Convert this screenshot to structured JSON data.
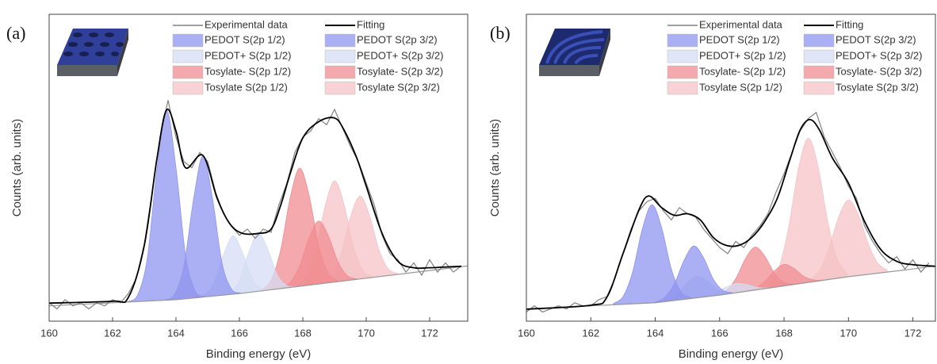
{
  "chart_data": [
    {
      "type": "area",
      "panel_label": "(a)",
      "xlabel": "Binding energy (eV)",
      "ylabel": "Counts (arb. units)",
      "xlim": [
        160,
        173.2
      ],
      "xticks": [
        160,
        162,
        164,
        166,
        168,
        170,
        172
      ],
      "ylim": [
        0,
        100
      ],
      "experimental": {
        "name": "Experimental data",
        "color": "#808080",
        "x": [
          160,
          160.25,
          160.5,
          160.75,
          161,
          161.25,
          161.5,
          161.75,
          162,
          162.25,
          162.5,
          162.75,
          163,
          163.25,
          163.5,
          163.75,
          164,
          164.25,
          164.5,
          164.75,
          165,
          165.25,
          165.5,
          165.75,
          166,
          166.25,
          166.5,
          166.75,
          167,
          167.25,
          167.5,
          167.75,
          168,
          168.25,
          168.5,
          168.75,
          169,
          169.25,
          169.5,
          169.75,
          170,
          170.25,
          170.5,
          170.75,
          171,
          171.25,
          171.5,
          171.75,
          172,
          172.25,
          172.5,
          172.75,
          173
        ],
        "values": [
          6,
          4,
          7,
          5,
          6,
          4,
          6,
          5,
          7,
          6,
          9,
          14,
          25,
          42,
          60,
          72,
          60,
          52,
          50,
          55,
          52,
          42,
          35,
          31,
          28,
          30,
          27,
          30,
          29,
          38,
          45,
          55,
          60,
          62,
          66,
          64,
          69,
          63,
          57,
          52,
          45,
          38,
          28,
          22,
          20,
          16,
          19,
          15,
          20,
          16,
          19,
          16,
          18
        ]
      },
      "fit": {
        "name": "Fitting",
        "color": "#000000",
        "x": [
          160,
          162,
          162.5,
          163,
          163.4,
          163.7,
          164,
          164.3,
          164.85,
          165.3,
          165.7,
          166.1,
          166.6,
          167,
          167.3,
          167.6,
          168,
          168.5,
          169,
          169.3,
          169.7,
          170,
          170.5,
          171,
          171.5,
          172,
          173
        ],
        "values": [
          5.9,
          6.5,
          7.8,
          24.7,
          53,
          68.8,
          62,
          50,
          54,
          40,
          31.7,
          28.6,
          28.6,
          30,
          37.7,
          48,
          59.7,
          65,
          66.2,
          62.3,
          53.2,
          44,
          28.6,
          19.5,
          17.4,
          17.4,
          17.9
        ]
      },
      "baseline": {
        "color": "#9a9a9a",
        "x": [
          160,
          162,
          164,
          166,
          168,
          170,
          172,
          173.2
        ],
        "values": [
          5,
          6,
          7,
          9,
          11.5,
          14,
          16.5,
          18
        ]
      },
      "series": [
        {
          "name": "PEDOT S(2p 1/2)",
          "color": "#8f94ef",
          "x": [
            163.65,
            163.95,
            164.25,
            164.55,
            164.85,
            165.15,
            165.45,
            165.75,
            166.05
          ],
          "values": [
            0.1,
            1.7,
            10.6,
            31.9,
            46,
            31.9,
            10.6,
            1.7,
            0.1
          ]
        },
        {
          "name": "PEDOT+ S(2p 1/2)",
          "color": "#d6ddf4",
          "x": [
            165.4,
            165.7,
            166,
            166.3,
            166.6,
            166.9,
            167.2,
            167.5,
            167.8
          ],
          "values": [
            0.1,
            0.7,
            4.4,
            13.2,
            19,
            13.2,
            4.4,
            0.7,
            0.1
          ]
        },
        {
          "name": "Tosylate- S(2p 1/2)",
          "color": "#f08c92",
          "x": [
            167.3,
            167.6,
            167.9,
            168.2,
            168.5,
            168.8,
            169.1,
            169.4,
            169.7
          ],
          "values": [
            0.2,
            1.6,
            6.7,
            15.5,
            20.5,
            15.5,
            6.7,
            1.6,
            0.2
          ]
        },
        {
          "name": "Tosylate S(2p 1/2)",
          "color": "#f6c3c6",
          "x": [
            168.6,
            168.9,
            169.2,
            169.5,
            169.8,
            170.1,
            170.4,
            170.7,
            171
          ],
          "values": [
            0.3,
            2.1,
            8.8,
            20.4,
            27,
            20.4,
            8.8,
            2.1,
            0.3
          ]
        },
        {
          "name": "PEDOT S(2p 3/2)",
          "color": "#8f94ef",
          "x": [
            162.5,
            162.8,
            163.1,
            163.4,
            163.7,
            164,
            164.3,
            164.6,
            164.9
          ],
          "values": [
            0.2,
            2.3,
            14.3,
            43,
            62,
            43,
            14.3,
            2.3,
            0.2
          ]
        },
        {
          "name": "PEDOT+ S(2p 3/2)",
          "color": "#d6ddf4",
          "x": [
            164.6,
            164.9,
            165.2,
            165.5,
            165.8,
            166.1,
            166.4,
            166.7,
            167
          ],
          "values": [
            0.1,
            0.7,
            4.4,
            13.2,
            19,
            13.2,
            4.4,
            0.7,
            0.1
          ]
        },
        {
          "name": "Tosylate- S(2p 3/2)",
          "color": "#f08c92",
          "x": [
            166.7,
            167,
            167.3,
            167.6,
            167.9,
            168.2,
            168.5,
            168.8,
            169.1
          ],
          "values": [
            0.4,
            3.1,
            12.5,
            29.1,
            38.5,
            29.1,
            12.5,
            3.1,
            0.4
          ]
        },
        {
          "name": "Tosylate S(2p 3/2)",
          "color": "#f6c3c6",
          "x": [
            167.8,
            168.1,
            168.4,
            168.7,
            169,
            169.3,
            169.6,
            169.9,
            170.2
          ],
          "values": [
            0.4,
            2.6,
            10.7,
            24.9,
            33,
            24.9,
            10.7,
            2.6,
            0.4
          ]
        }
      ]
    },
    {
      "type": "area",
      "panel_label": "(b)",
      "xlabel": "Binding energy (eV)",
      "ylabel": "Counts (arb. units)",
      "xlim": [
        160,
        172.7
      ],
      "xticks": [
        160,
        162,
        164,
        166,
        168,
        170,
        172
      ],
      "ylim": [
        0,
        100
      ],
      "experimental": {
        "name": "Experimental data",
        "color": "#808080",
        "x": [
          160,
          160.25,
          160.5,
          160.75,
          161,
          161.25,
          161.5,
          161.75,
          162,
          162.25,
          162.5,
          162.75,
          163,
          163.25,
          163.5,
          163.75,
          164,
          164.25,
          164.5,
          164.75,
          165,
          165.25,
          165.5,
          165.75,
          166,
          166.25,
          166.5,
          166.75,
          167,
          167.25,
          167.5,
          167.75,
          168,
          168.25,
          168.5,
          168.75,
          169,
          169.25,
          169.5,
          169.75,
          170,
          170.25,
          170.5,
          170.75,
          171,
          171.25,
          171.5,
          171.75,
          172,
          172.25,
          172.5
        ],
        "values": [
          3,
          5,
          3,
          4,
          5,
          4,
          6,
          5,
          5,
          7,
          8,
          14,
          22,
          30,
          36,
          39,
          40,
          36,
          33,
          37,
          35,
          34,
          30,
          27,
          24,
          22,
          26,
          24,
          28,
          31,
          35,
          42,
          48,
          55,
          62,
          66,
          68,
          60,
          55,
          50,
          44,
          40,
          31,
          26,
          22,
          19,
          21,
          17,
          20,
          16,
          19
        ]
      },
      "fit": {
        "name": "Fitting",
        "color": "#000000",
        "x": [
          160,
          162,
          162.5,
          163,
          163.5,
          163.8,
          164.2,
          164.6,
          165,
          165.4,
          165.8,
          166.2,
          166.6,
          167,
          167.4,
          167.8,
          168.2,
          168.5,
          168.8,
          169.1,
          169.5,
          170,
          170.5,
          171,
          171.5,
          172,
          172.7
        ],
        "values": [
          3.9,
          5.2,
          7.8,
          22,
          36.4,
          40.8,
          37,
          34.5,
          35,
          33,
          27.3,
          24.7,
          24.7,
          27.3,
          32.5,
          40.3,
          53.2,
          62.3,
          65.7,
          62.3,
          53.2,
          45,
          32.5,
          23.4,
          19.5,
          18.4,
          17.9
        ]
      },
      "baseline": {
        "color": "#9a9a9a",
        "x": [
          160,
          162,
          164,
          166,
          168,
          170,
          172,
          172.7
        ],
        "values": [
          4,
          5,
          6,
          8.5,
          11.5,
          14.5,
          17,
          18
        ]
      },
      "series": [
        {
          "name": "PEDOT S(2p 1/2)",
          "color": "#8f94ef",
          "x": [
            164,
            164.3,
            164.6,
            164.9,
            165.2,
            165.5,
            165.8,
            166.1,
            166.4
          ],
          "values": [
            0.2,
            1.4,
            5.5,
            12.8,
            17,
            12.8,
            5.5,
            1.4,
            0.2
          ]
        },
        {
          "name": "PEDOT+ S(2p 1/2)",
          "color": "#d6ddf4",
          "x": [
            165.3,
            165.6,
            165.9,
            166.2,
            166.5,
            166.8,
            167.1,
            167.4,
            167.7
          ],
          "values": [
            0,
            0.2,
            1,
            2.3,
            3,
            2.3,
            1,
            0.2,
            0
          ]
        },
        {
          "name": "Tosylate- S(2p 1/2)",
          "color": "#f08c92",
          "x": [
            166.8,
            167.1,
            167.4,
            167.7,
            168,
            168.3,
            168.6,
            168.9,
            169.2
          ],
          "values": [
            0.1,
            0.6,
            2.3,
            5.3,
            7,
            5.3,
            2.3,
            0.6,
            0.1
          ]
        },
        {
          "name": "Tosylate S(2p 1/2)",
          "color": "#f6c3c6",
          "x": [
            168.8,
            169.1,
            169.4,
            169.7,
            170,
            170.3,
            170.6,
            170.9,
            171.2
          ],
          "values": [
            0.7,
            3.4,
            10.3,
            20,
            25,
            20,
            10.3,
            3.4,
            0.7
          ]
        },
        {
          "name": "PEDOT S(2p 3/2)",
          "color": "#8f94ef",
          "x": [
            162.7,
            163,
            163.3,
            163.6,
            163.9,
            164.2,
            164.5,
            164.8,
            165.1
          ],
          "values": [
            0.4,
            2.5,
            10.4,
            24.2,
            32,
            24.2,
            10.4,
            2.5,
            0.4
          ]
        },
        {
          "name": "PEDOT+ S(2p 3/2)",
          "color": "#d6ddf4",
          "x": [
            164.1,
            164.4,
            164.7,
            165,
            165.3,
            165.6,
            165.9,
            166.2,
            166.5
          ],
          "values": [
            0.1,
            0.6,
            2.3,
            5.3,
            7,
            5.3,
            2.3,
            0.6,
            0.1
          ]
        },
        {
          "name": "Tosylate- S(2p 3/2)",
          "color": "#f08c92",
          "x": [
            165.9,
            166.2,
            166.5,
            166.8,
            167.1,
            167.4,
            167.7,
            168,
            168.3
          ],
          "values": [
            0.2,
            1.1,
            4.6,
            10.6,
            14,
            10.6,
            4.6,
            1.1,
            0.2
          ]
        },
        {
          "name": "Tosylate S(2p 3/2)",
          "color": "#f6c3c6",
          "x": [
            167.55,
            167.85,
            168.15,
            168.45,
            168.75,
            169.05,
            169.35,
            169.65,
            169.95
          ],
          "values": [
            1.3,
            6.3,
            19.3,
            37.6,
            47,
            37.6,
            19.3,
            6.3,
            1.3
          ]
        }
      ]
    }
  ]
}
